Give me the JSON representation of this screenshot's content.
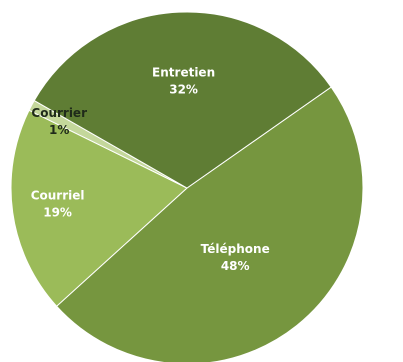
{
  "chart_data": {
    "type": "pie",
    "slices": [
      {
        "label": "Téléphone",
        "value": 48,
        "value_label": "48%",
        "color": "#76963f"
      },
      {
        "label": "Courriel",
        "value": 19,
        "value_label": "19%",
        "color": "#9bbb59"
      },
      {
        "label": "Courrier",
        "value": 1,
        "value_label": "1%",
        "color": "#c4d79b"
      },
      {
        "label": "Entretien",
        "value": 32,
        "value_label": "32%",
        "color": "#5f7d34"
      }
    ]
  }
}
